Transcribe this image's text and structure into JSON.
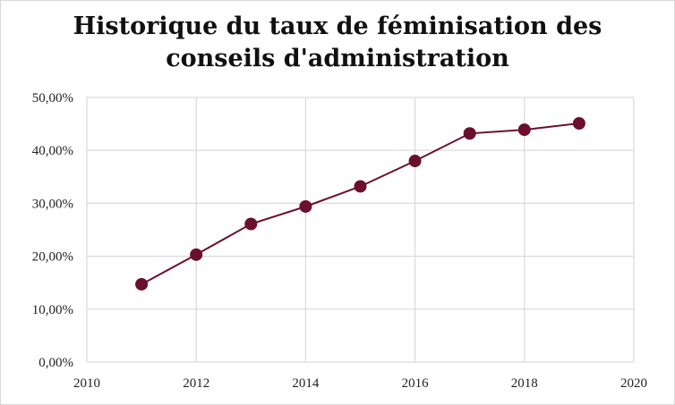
{
  "chart_data": {
    "type": "line",
    "title": "Historique du taux de féminisation des conseils d'administration",
    "title_lines": [
      "Historique du taux de féminisation des",
      "conseils d'administration"
    ],
    "xlabel": "",
    "ylabel": "",
    "xlim": [
      2010,
      2020
    ],
    "ylim": [
      0,
      50
    ],
    "x_ticks": [
      2010,
      2012,
      2014,
      2016,
      2018,
      2020
    ],
    "x_tick_labels": [
      "2010",
      "2012",
      "2014",
      "2016",
      "2018",
      "2020"
    ],
    "y_ticks": [
      0,
      10,
      20,
      30,
      40,
      50
    ],
    "y_tick_labels": [
      "0,00%",
      "10,00%",
      "20,00%",
      "30,00%",
      "40,00%",
      "50,00%"
    ],
    "grid": true,
    "legend": "none",
    "color": "#6b0f2e",
    "series": [
      {
        "x": [
          2011,
          2012,
          2013,
          2014,
          2015,
          2016,
          2017,
          2018,
          2019
        ],
        "values": [
          14.7,
          20.3,
          26.1,
          29.4,
          33.2,
          38.0,
          43.2,
          43.9,
          45.1
        ]
      }
    ]
  }
}
